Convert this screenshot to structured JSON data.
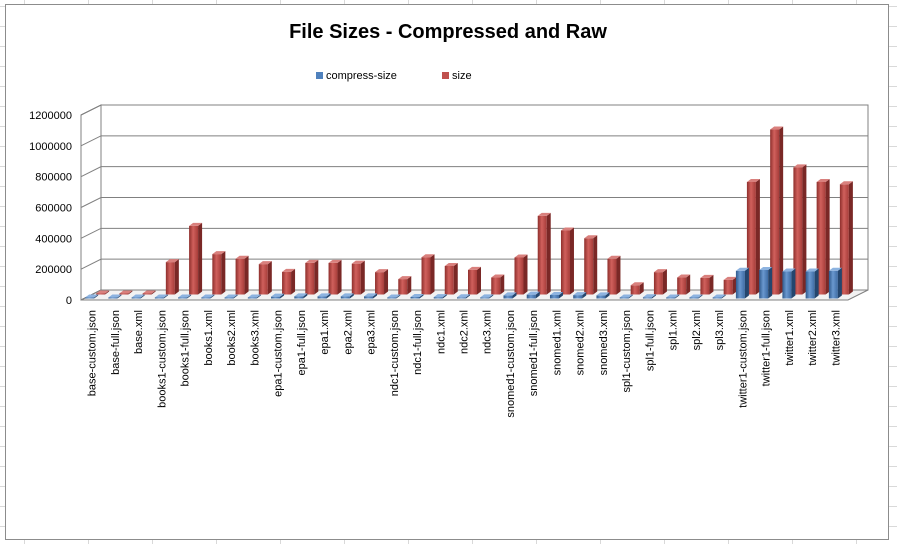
{
  "chart_data": {
    "type": "bar",
    "title": "File Sizes - Compressed and Raw",
    "xlabel": "",
    "ylabel": "",
    "ylim": [
      0,
      1200000
    ],
    "yticks": [
      0,
      200000,
      400000,
      600000,
      800000,
      1000000,
      1200000
    ],
    "ytick_labels": [
      "0",
      "200000",
      "400000",
      "600000",
      "800000",
      "1000000",
      "1200000"
    ],
    "grid": true,
    "legend_position": "top",
    "categories": [
      "base-custom.json",
      "base-full.json",
      "base.xml",
      "books1-custom.json",
      "books1-full.json",
      "books1.xml",
      "books2.xml",
      "books3.xml",
      "epa1-custom.json",
      "epa1-full.json",
      "epa1.xml",
      "epa2.xml",
      "epa3.xml",
      "ndc1-custom.json",
      "ndc1-full.json",
      "ndc1.xml",
      "ndc2.xml",
      "ndc3.xml",
      "snomed1-custom.json",
      "snomed1-full.json",
      "snomed1.xml",
      "snomed2.xml",
      "snomed3.xml",
      "spl1-custom.json",
      "spl1-full.json",
      "spl1.xml",
      "spl2.xml",
      "spl3.xml",
      "twitter1-custom.json",
      "twitter1-full.json",
      "twitter1.xml",
      "twitter2.xml",
      "twitter3.xml"
    ],
    "series": [
      {
        "name": "compress-size",
        "color": "#4f81bd",
        "values": [
          1000,
          1000,
          1000,
          2000,
          4000,
          5000,
          5000,
          5000,
          12000,
          14000,
          14000,
          14000,
          14000,
          6000,
          10000,
          9000,
          8000,
          7000,
          20000,
          25000,
          23000,
          22000,
          20000,
          3000,
          8000,
          6000,
          5000,
          5000,
          180000,
          185000,
          175000,
          175000,
          180000
        ]
      },
      {
        "name": "size",
        "color": "#c0504d",
        "values": [
          5000,
          5000,
          5000,
          210000,
          445000,
          262000,
          232000,
          197000,
          147000,
          205000,
          205000,
          200000,
          145000,
          100000,
          242000,
          185000,
          160000,
          110000,
          240000,
          510000,
          415000,
          365000,
          232000,
          60000,
          145000,
          110000,
          108000,
          95000,
          730000,
          1070000,
          825000,
          730000,
          715000
        ]
      }
    ]
  }
}
